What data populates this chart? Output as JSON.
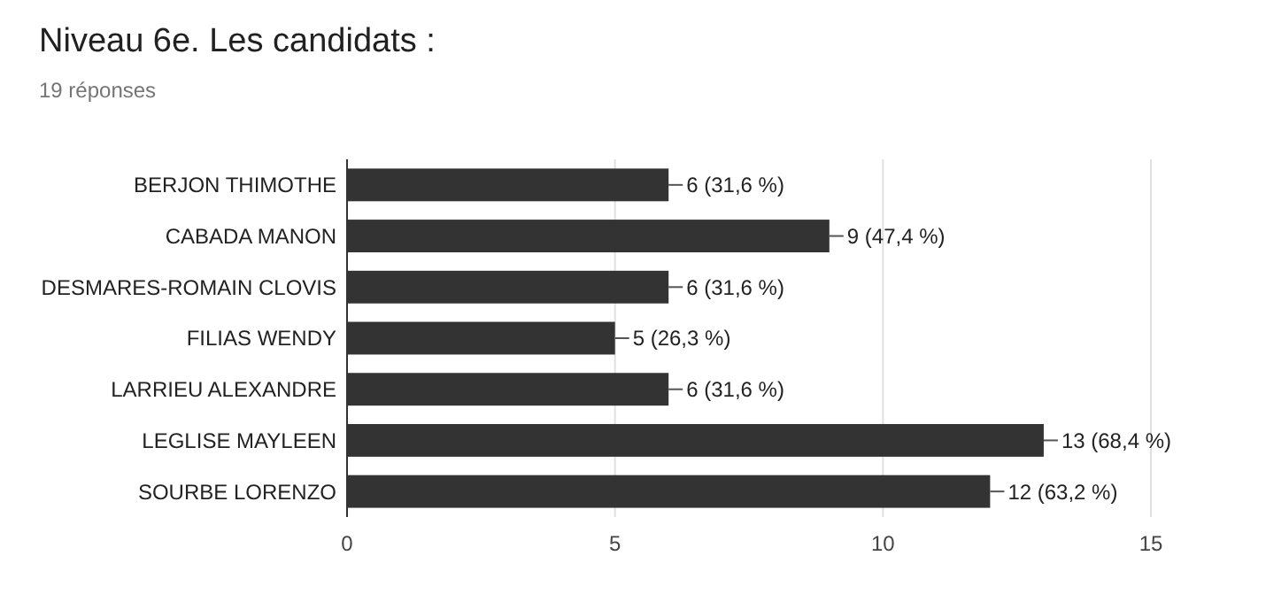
{
  "chart_data": {
    "type": "bar",
    "orientation": "horizontal",
    "title": "Niveau 6e. Les candidats :",
    "subtitle": "19 réponses",
    "categories": [
      "BERJON THIMOTHE",
      "CABADA MANON",
      "DESMARES-ROMAIN CLOVIS",
      "FILIAS WENDY",
      "LARRIEU ALEXANDRE",
      "LEGLISE MAYLEEN",
      "SOURBE LORENZO"
    ],
    "values": [
      6,
      9,
      6,
      5,
      6,
      13,
      12
    ],
    "value_labels": [
      "6 (31,6 %)",
      "9 (47,4 %)",
      "6 (31,6 %)",
      "5 (26,3 %)",
      "6 (31,6 %)",
      "13 (68,4 %)",
      "12 (63,2 %)"
    ],
    "color": "#333333",
    "xlim": [
      0,
      15
    ],
    "xticks": [
      0,
      5,
      10,
      15
    ],
    "grid": "x"
  }
}
